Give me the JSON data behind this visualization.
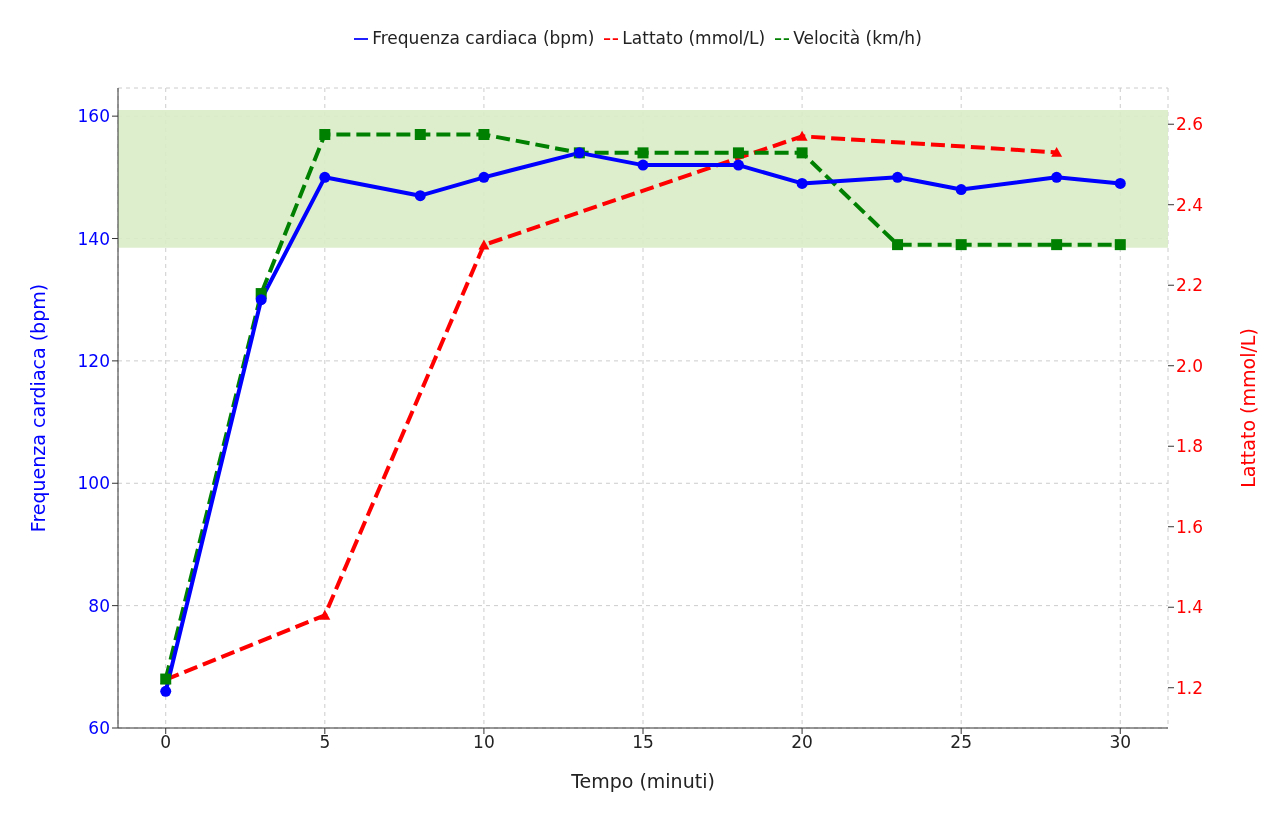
{
  "chart_data": {
    "type": "line",
    "xlabel": "Tempo (minuti)",
    "ylabel": "Frequenza cardiaca (bpm)",
    "y2label": "Lattato (mmol/L)",
    "xlim": [
      -1.5,
      31.5
    ],
    "xticks": [
      0,
      5,
      10,
      15,
      20,
      25,
      30
    ],
    "ylim": [
      60,
      164.6
    ],
    "yticks": [
      60,
      80,
      100,
      120,
      140,
      160
    ],
    "y2lim": [
      1.1,
      2.69
    ],
    "y2ticks": [
      1.2,
      1.4,
      1.6,
      1.8,
      {
        "value": 2,
        "label": "2.0"
      },
      2.2,
      2.4,
      2.6
    ],
    "grid": true,
    "legend": "top",
    "bands": [
      {
        "axis": "y",
        "from": 138.5,
        "to": 161,
        "color": "#d9ecc6"
      }
    ],
    "series": [
      {
        "name": "Frequenza cardiaca (bpm)",
        "color": "#0000ff",
        "x": [
          0,
          3,
          5,
          8,
          10,
          13,
          15,
          18,
          20,
          23,
          25,
          28,
          30
        ],
        "values": [
          66,
          130,
          150,
          147,
          150,
          154,
          152,
          152,
          149,
          150,
          148,
          150,
          149
        ],
        "marker": "circle",
        "line_style": "solid"
      },
      {
        "name": "Velocità (km/h)",
        "color": "#008000",
        "x": [
          0,
          3,
          5,
          8,
          10,
          13,
          15,
          18,
          20,
          23,
          25,
          28,
          30
        ],
        "values": [
          68,
          131,
          157,
          157,
          157,
          154,
          154,
          154,
          154,
          139,
          139,
          139,
          139
        ],
        "marker": "square",
        "line_style": "dashed"
      },
      {
        "name": "Lattato (mmol/L)",
        "color": "#ff0000",
        "axis": "y2",
        "x": [
          0,
          5,
          10,
          20,
          28
        ],
        "values": [
          1.22,
          1.38,
          2.3,
          2.57,
          2.53
        ],
        "marker": "triangle",
        "line_style": "dashed"
      }
    ]
  }
}
